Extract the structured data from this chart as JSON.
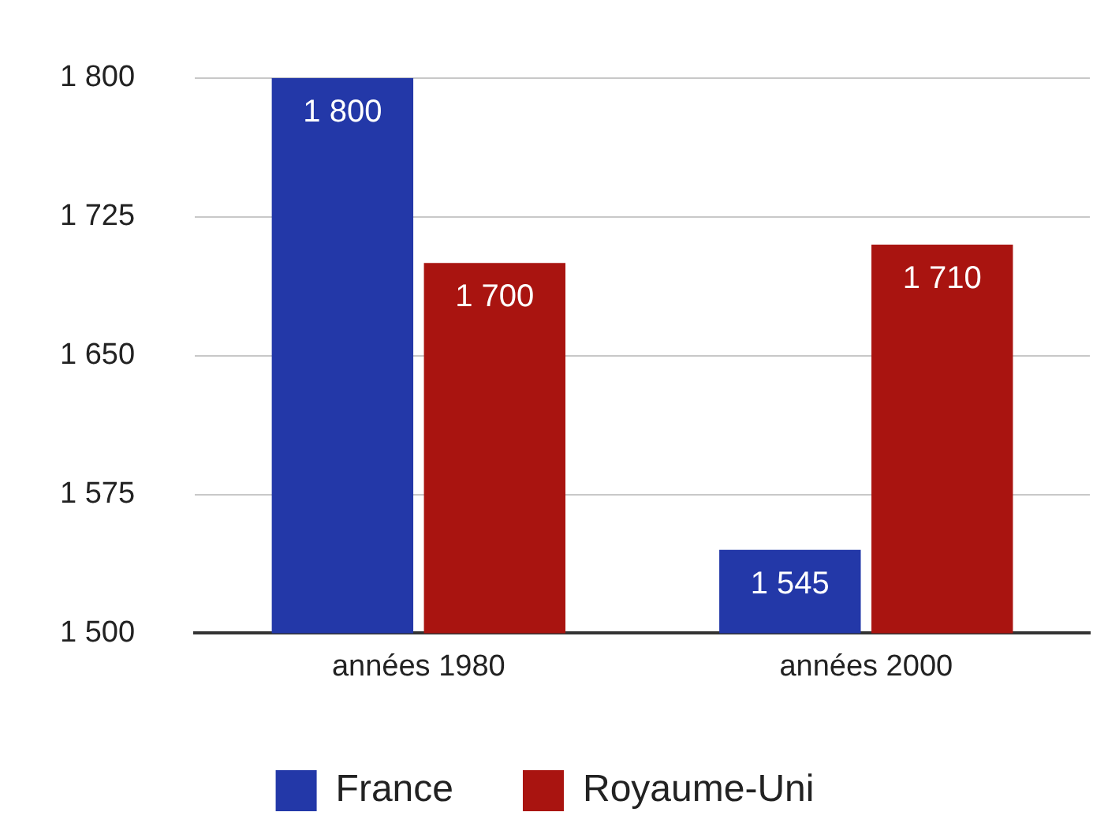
{
  "chart_data": {
    "type": "bar",
    "categories": [
      "années 1980",
      "années 2000"
    ],
    "series": [
      {
        "name": "France",
        "color": "#2338a8",
        "values": [
          1800,
          1545
        ],
        "value_labels": [
          "1 800",
          "1 545"
        ]
      },
      {
        "name": "Royaume-Uni",
        "color": "#a91410",
        "values": [
          1700,
          1710
        ],
        "value_labels": [
          "1 700",
          "1 710"
        ]
      }
    ],
    "ylim": [
      1500,
      1800
    ],
    "yticks": [
      {
        "value": 1500,
        "label": "1 500"
      },
      {
        "value": 1575,
        "label": "1 575"
      },
      {
        "value": 1650,
        "label": "1 650"
      },
      {
        "value": 1725,
        "label": "1 725"
      },
      {
        "value": 1800,
        "label": "1 800"
      }
    ],
    "grid": "y",
    "legend": "bottom"
  }
}
